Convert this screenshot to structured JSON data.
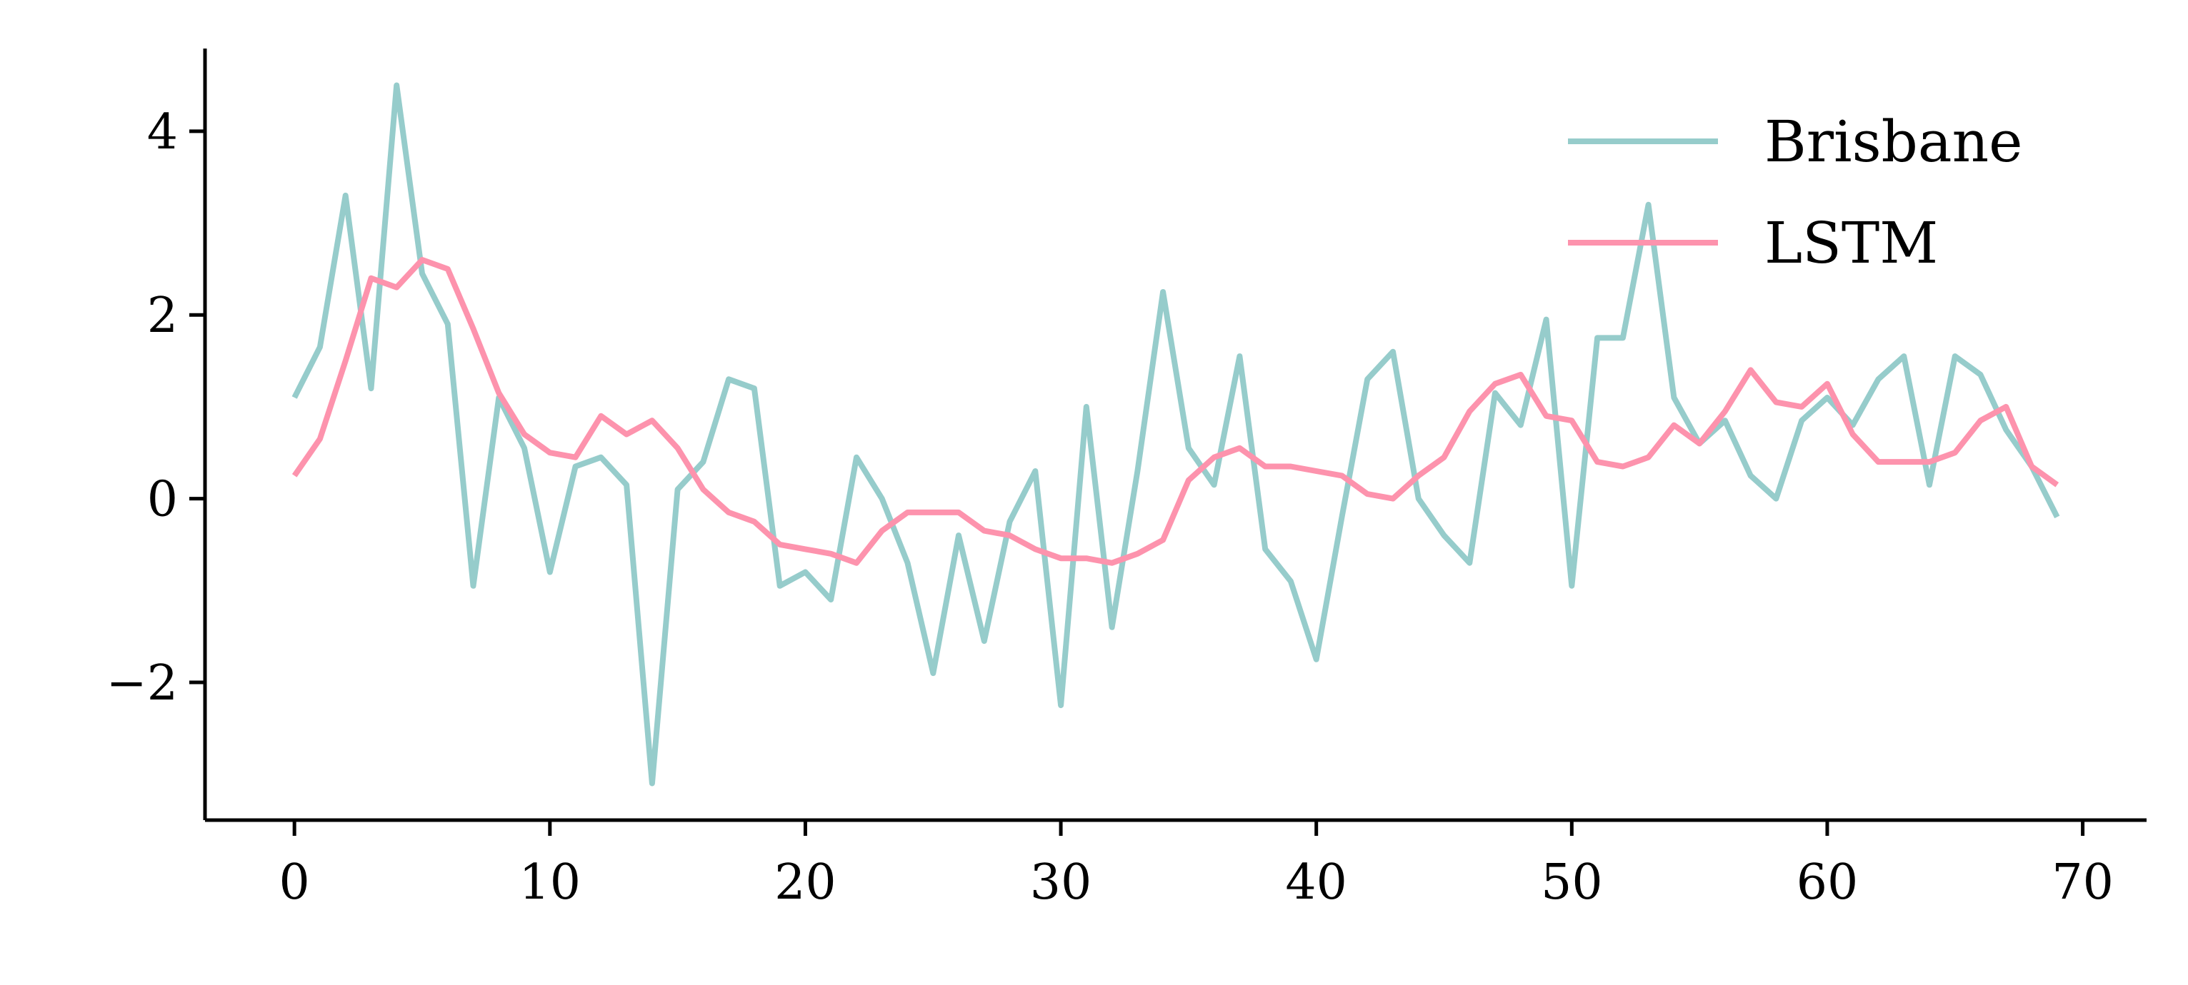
{
  "chart_data": {
    "type": "line",
    "title": "",
    "xlabel": "",
    "ylabel": "",
    "xlim": [
      -3.5,
      72.5
    ],
    "ylim": [
      -3.5,
      4.9
    ],
    "xticks": [
      0,
      10,
      20,
      30,
      40,
      50,
      60,
      70
    ],
    "yticks": [
      -2,
      0,
      2,
      4
    ],
    "grid": false,
    "legend_position": "top-right",
    "x": [
      0,
      1,
      2,
      3,
      4,
      5,
      6,
      7,
      8,
      9,
      10,
      11,
      12,
      13,
      14,
      15,
      16,
      17,
      18,
      19,
      20,
      21,
      22,
      23,
      24,
      25,
      26,
      27,
      28,
      29,
      30,
      31,
      32,
      33,
      34,
      35,
      36,
      37,
      38,
      39,
      40,
      41,
      42,
      43,
      44,
      45,
      46,
      47,
      48,
      49,
      50,
      51,
      52,
      53,
      54,
      55,
      56,
      57,
      58,
      59,
      60,
      61,
      62,
      63,
      64,
      65,
      66,
      67,
      68,
      69
    ],
    "series": [
      {
        "name": "Brisbane",
        "color": "#96cccb",
        "values": [
          1.1,
          1.65,
          3.3,
          1.2,
          4.5,
          2.45,
          1.9,
          -0.95,
          1.1,
          0.55,
          -0.8,
          0.35,
          0.45,
          0.15,
          -3.1,
          0.1,
          0.4,
          1.3,
          1.2,
          -0.95,
          -0.8,
          -1.1,
          0.45,
          0.0,
          -0.7,
          -1.9,
          -0.4,
          -1.55,
          -0.25,
          0.3,
          -2.25,
          1.0,
          -1.4,
          0.3,
          2.25,
          0.55,
          0.15,
          1.55,
          -0.55,
          -0.9,
          -1.75,
          -0.2,
          1.3,
          1.6,
          0.0,
          -0.4,
          -0.7,
          1.15,
          0.8,
          1.95,
          -0.95,
          1.75,
          1.75,
          3.2,
          1.1,
          0.6,
          0.85,
          0.25,
          0.0,
          0.85,
          1.1,
          0.8,
          1.3,
          1.55,
          0.15,
          1.55,
          1.35,
          0.75,
          0.35,
          -0.2
        ]
      },
      {
        "name": "LSTM",
        "color": "#fd93ad",
        "values": [
          0.25,
          0.65,
          1.5,
          2.4,
          2.3,
          2.6,
          2.5,
          1.85,
          1.15,
          0.7,
          0.5,
          0.45,
          0.9,
          0.7,
          0.85,
          0.55,
          0.1,
          -0.15,
          -0.25,
          -0.5,
          -0.55,
          -0.6,
          -0.7,
          -0.35,
          -0.15,
          -0.15,
          -0.15,
          -0.35,
          -0.4,
          -0.55,
          -0.65,
          -0.65,
          -0.7,
          -0.6,
          -0.45,
          0.2,
          0.45,
          0.55,
          0.35,
          0.35,
          0.3,
          0.25,
          0.05,
          0.0,
          0.25,
          0.45,
          0.95,
          1.25,
          1.35,
          0.9,
          0.85,
          0.4,
          0.35,
          0.45,
          0.8,
          0.6,
          0.95,
          1.4,
          1.05,
          1.0,
          1.25,
          0.7,
          0.4,
          0.4,
          0.4,
          0.5,
          0.85,
          1.0,
          0.35,
          0.15
        ]
      }
    ]
  },
  "tick_labels": {
    "x": [
      "0",
      "10",
      "20",
      "30",
      "40",
      "50",
      "60",
      "70"
    ],
    "y": [
      "−2",
      "0",
      "2",
      "4"
    ]
  }
}
